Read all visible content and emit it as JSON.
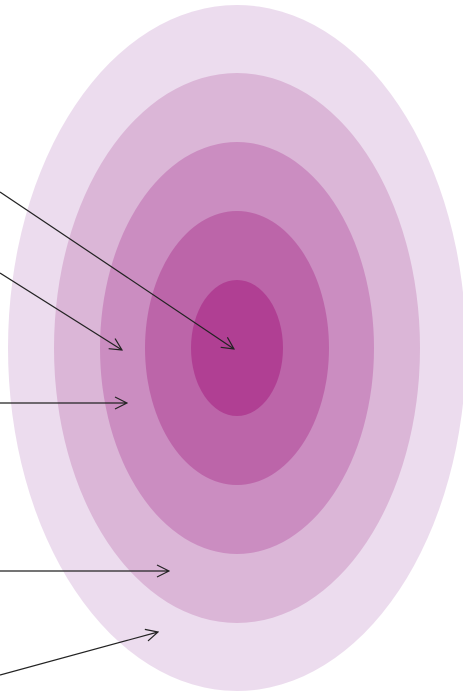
{
  "diagram": {
    "type": "concentric-target",
    "rings": [
      {
        "level": 1,
        "color": "#ecdcee"
      },
      {
        "level": 2,
        "color": "#dbb6d7"
      },
      {
        "level": 3,
        "color": "#cb8dc1"
      },
      {
        "level": 4,
        "color": "#bc65a9"
      },
      {
        "level": 5,
        "color": "#b03f93"
      }
    ],
    "pointers": [
      {
        "target_level": 5
      },
      {
        "target_level": 3
      },
      {
        "target_level": 3
      },
      {
        "target_level": 2
      },
      {
        "target_level": 1
      }
    ],
    "arrow_color": "#222222"
  }
}
